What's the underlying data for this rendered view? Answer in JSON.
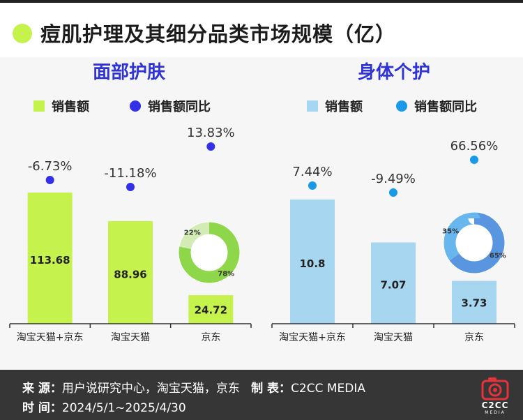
{
  "title": "痘肌护理及其细分品类市场规模（亿）",
  "colors": {
    "accent": "#c6f24e",
    "left_bar": "#c6f24e",
    "left_dot": "#3430e8",
    "left_donut_main": "#8ed64a",
    "left_donut_minor": "#d3ecb5",
    "right_bar": "#a6d6f0",
    "right_dot": "#1a99e6",
    "right_donut_main": "#5a96e0",
    "right_donut_minor": "#68b6ee",
    "panel_title": "#2f33d6"
  },
  "chart_data": [
    {
      "type": "bar",
      "title": "面部护肤",
      "legend": [
        "销售额",
        "销售额同比"
      ],
      "categories": [
        "淘宝天猫+京东",
        "淘宝天猫",
        "京东"
      ],
      "series": [
        {
          "name": "销售额",
          "values": [
            113.68,
            88.96,
            24.72
          ]
        },
        {
          "name": "销售额同比",
          "values": [
            -6.73,
            -11.18,
            13.83
          ],
          "unit": "%"
        }
      ],
      "bar_labels": [
        "113.68",
        "88.96",
        "24.72"
      ],
      "yoy_labels": [
        "-6.73%",
        "-11.18%",
        "13.83%"
      ],
      "donut": {
        "values": [
          78,
          22
        ],
        "labels": [
          "78%",
          "22%"
        ]
      }
    },
    {
      "type": "bar",
      "title": "身体个护",
      "legend": [
        "销售额",
        "销售额同比"
      ],
      "categories": [
        "淘宝天猫+京东",
        "淘宝天猫",
        "京东"
      ],
      "series": [
        {
          "name": "销售额",
          "values": [
            10.8,
            7.07,
            3.73
          ]
        },
        {
          "name": "销售额同比",
          "values": [
            7.44,
            -9.49,
            66.56
          ],
          "unit": "%"
        }
      ],
      "bar_labels": [
        "10.8",
        "7.07",
        "3.73"
      ],
      "yoy_labels": [
        "7.44%",
        "-9.49%",
        "66.56%"
      ],
      "donut": {
        "values": [
          65,
          35
        ],
        "labels": [
          "65%",
          "35%"
        ]
      }
    }
  ],
  "footer": {
    "source_label": "来 源：",
    "source_value": "用户说研究中心，淘宝天猫，京东",
    "maker_label": "制 表：",
    "maker_value": "C2CC  MEDIA",
    "time_label": "时 间：",
    "time_value": "2024/5/1~2025/4/30",
    "logo_text": "C2CC",
    "logo_sub": "MEDIA"
  }
}
